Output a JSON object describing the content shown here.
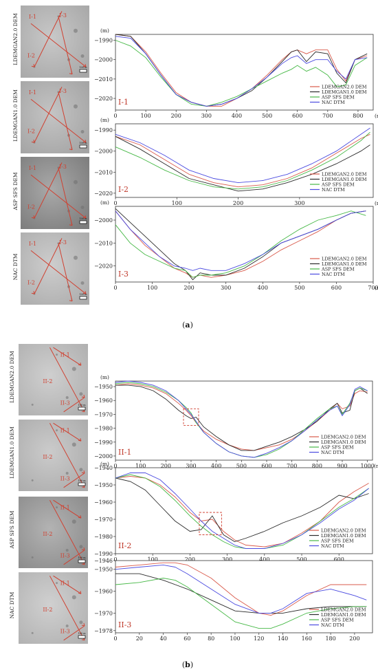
{
  "colors": {
    "LDEMGAN2.0 DEM": "#d9594a",
    "LDEMGAN1.0 DEM": "#2a2a2a",
    "ASP SFS DEM": "#45b845",
    "NAC DTM": "#4a4ae0"
  },
  "legend": [
    "LDEMGAN2.0 DEM",
    "LDEMGAN1.0 DEM",
    "ASP SFS DEM",
    "NAC DTM"
  ],
  "captions": {
    "a": "a",
    "b": "b"
  },
  "panels": [
    {
      "group": "a",
      "side_labels": [
        "LDEMGAN2.0 DEM",
        "LDEMGAN1.0 DEM",
        "ASP SFS DEM",
        "NAC DTM"
      ],
      "image_labels": [
        "I-1",
        "I-2",
        "I-3"
      ],
      "scale_text": "100 m"
    },
    {
      "group": "b",
      "side_labels": [
        "LDEMGAN2.0 DEM",
        "LDEMGAN1.0 DEM",
        "ASP SFS DEM",
        "NAC DTM"
      ],
      "image_labels": [
        "II-1",
        "II-2",
        "II-3"
      ],
      "scale_text": "100 m"
    }
  ],
  "chart_data": [
    {
      "type": "line",
      "label": "I-1",
      "xlabel": "(m)",
      "ylabel": "(m)",
      "xlim": [
        0,
        850
      ],
      "ylim": [
        -2026,
        -1987
      ],
      "xticks": [
        0,
        100,
        200,
        300,
        400,
        500,
        600,
        700,
        800
      ],
      "yticks": [
        -1990,
        -2000,
        -2010,
        -2020
      ],
      "x": [
        0,
        50,
        100,
        150,
        200,
        250,
        300,
        350,
        400,
        450,
        500,
        550,
        580,
        600,
        630,
        660,
        700,
        730,
        760,
        790,
        830
      ],
      "series": [
        {
          "name": "LDEMGAN2.0 DEM",
          "values": [
            -1987,
            -1988,
            -1996,
            -2007,
            -2017,
            -2022,
            -2024,
            -2024,
            -2020,
            -2015,
            -2008,
            -2000,
            -1996,
            -1995,
            -1997,
            -1995,
            -1995,
            -2005,
            -2011,
            -2000,
            -1998
          ]
        },
        {
          "name": "LDEMGAN1.0 DEM",
          "values": [
            -1987,
            -1988,
            -1997,
            -2008,
            -2018,
            -2022,
            -2024,
            -2023,
            -2020,
            -2016,
            -2009,
            -2001,
            -1996,
            -1995,
            -2001,
            -1996,
            -1997,
            -2007,
            -2012,
            -2000,
            -1997
          ]
        },
        {
          "name": "ASP SFS DEM",
          "values": [
            -1990,
            -1993,
            -1999,
            -2009,
            -2018,
            -2023,
            -2024,
            -2022,
            -2019,
            -2015,
            -2011,
            -2007,
            -2005,
            -2003,
            -2006,
            -2004,
            -2008,
            -2014,
            -2013,
            -2003,
            -1999
          ]
        },
        {
          "name": "NAC DTM",
          "values": [
            -1988,
            -1989,
            -1997,
            -2008,
            -2018,
            -2022,
            -2024,
            -2023,
            -2020,
            -2015,
            -2009,
            -2002,
            -1999,
            -1998,
            -2002,
            -2000,
            -2000,
            -2006,
            -2010,
            -2000,
            -1999
          ]
        }
      ]
    },
    {
      "type": "line",
      "label": "I-2",
      "xlabel": "(m)",
      "ylabel": "(m)",
      "xlim": [
        0,
        420
      ],
      "ylim": [
        -2022,
        -1987
      ],
      "xticks": [
        0,
        100,
        200,
        300
      ],
      "yticks": [
        -1990,
        -2000,
        -2010,
        -2020
      ],
      "x": [
        0,
        40,
        80,
        120,
        160,
        200,
        240,
        280,
        320,
        360,
        400,
        415
      ],
      "series": [
        {
          "name": "LDEMGAN2.0 DEM",
          "values": [
            -1993,
            -1997,
            -2004,
            -2011,
            -2015,
            -2017,
            -2016,
            -2013,
            -2008,
            -2001,
            -1994,
            -1992
          ]
        },
        {
          "name": "LDEMGAN1.0 DEM",
          "values": [
            -1993,
            -1999,
            -2006,
            -2013,
            -2016,
            -2019,
            -2018,
            -2015,
            -2011,
            -2006,
            -2000,
            -1997
          ]
        },
        {
          "name": "ASP SFS DEM",
          "values": [
            -1998,
            -2003,
            -2009,
            -2014,
            -2017,
            -2018,
            -2017,
            -2014,
            -2009,
            -2003,
            -1995,
            -1991
          ]
        },
        {
          "name": "NAC DTM",
          "values": [
            -1992,
            -1996,
            -2002,
            -2009,
            -2013,
            -2015,
            -2014,
            -2011,
            -2006,
            -2000,
            -1992,
            -1989
          ]
        }
      ]
    },
    {
      "type": "line",
      "label": "I-3",
      "xlabel": "(m)",
      "ylabel": "(m)",
      "xlim": [
        0,
        700
      ],
      "ylim": [
        -2027,
        -1994
      ],
      "xticks": [
        0,
        100,
        200,
        300,
        400,
        500,
        600,
        700
      ],
      "yticks": [
        -2000,
        -2010,
        -2020
      ],
      "x": [
        0,
        40,
        80,
        120,
        160,
        190,
        210,
        230,
        260,
        300,
        350,
        400,
        450,
        500,
        550,
        600,
        640,
        680
      ],
      "series": [
        {
          "name": "LDEMGAN2.0 DEM",
          "values": [
            -1996,
            -2004,
            -2011,
            -2016,
            -2021,
            -2023,
            -2025,
            -2024,
            -2025,
            -2024,
            -2022,
            -2018,
            -2013,
            -2009,
            -2005,
            -2000,
            -1997,
            -1996
          ]
        },
        {
          "name": "LDEMGAN1.0 DEM",
          "values": [
            -1995,
            -2001,
            -2007,
            -2013,
            -2019,
            -2022,
            -2026,
            -2023,
            -2024,
            -2024,
            -2021,
            -2016,
            -2010,
            -2007,
            -2004,
            -2000,
            -1997,
            -1996
          ]
        },
        {
          "name": "ASP SFS DEM",
          "values": [
            -2002,
            -2010,
            -2015,
            -2018,
            -2021,
            -2022,
            -2025,
            -2024,
            -2024,
            -2023,
            -2020,
            -2015,
            -2009,
            -2004,
            -2000,
            -1998,
            -1996,
            -1998
          ]
        },
        {
          "name": "NAC DTM",
          "values": [
            -1996,
            -2004,
            -2010,
            -2016,
            -2020,
            -2021,
            -2022,
            -2021,
            -2022,
            -2022,
            -2019,
            -2015,
            -2010,
            -2007,
            -2004,
            -2000,
            -1997,
            -1996
          ]
        }
      ]
    },
    {
      "type": "line",
      "label": "II-1",
      "xlabel": "(m)",
      "ylabel": "(m)",
      "xlim": [
        0,
        1020
      ],
      "ylim": [
        -2003,
        -1946
      ],
      "xticks": [
        0,
        100,
        200,
        300,
        400,
        500,
        600,
        700,
        800,
        900,
        1000
      ],
      "yticks": [
        -1950,
        -1960,
        -1970,
        -1980,
        -1990,
        -2000
      ],
      "x": [
        0,
        50,
        100,
        150,
        200,
        250,
        280,
        300,
        320,
        350,
        400,
        450,
        500,
        550,
        600,
        650,
        700,
        750,
        800,
        850,
        880,
        900,
        930,
        950,
        970,
        1000
      ],
      "series": [
        {
          "name": "LDEMGAN2.0 DEM",
          "values": [
            -1949,
            -1948,
            -1949,
            -1951,
            -1955,
            -1962,
            -1967,
            -1971,
            -1976,
            -1982,
            -1988,
            -1992,
            -1995,
            -1996,
            -1994,
            -1992,
            -1988,
            -1982,
            -1975,
            -1967,
            -1962,
            -1966,
            -1964,
            -1955,
            -1953,
            -1954
          ]
        },
        {
          "name": "LDEMGAN1.0 DEM",
          "values": [
            -1949,
            -1949,
            -1950,
            -1953,
            -1959,
            -1967,
            -1971,
            -1973,
            -1972,
            -1979,
            -1986,
            -1992,
            -1996,
            -1996,
            -1993,
            -1990,
            -1986,
            -1981,
            -1975,
            -1966,
            -1962,
            -1969,
            -1967,
            -1953,
            -1951,
            -1955
          ]
        },
        {
          "name": "ASP SFS DEM",
          "values": [
            -1948,
            -1947,
            -1948,
            -1950,
            -1954,
            -1960,
            -1965,
            -1969,
            -1976,
            -1983,
            -1991,
            -1997,
            -2000,
            -2001,
            -1999,
            -1995,
            -1989,
            -1981,
            -1973,
            -1966,
            -1964,
            -1970,
            -1962,
            -1953,
            -1951,
            -1953
          ]
        },
        {
          "name": "NAC DTM",
          "values": [
            -1947,
            -1946,
            -1947,
            -1949,
            -1953,
            -1960,
            -1966,
            -1970,
            -1975,
            -1983,
            -1991,
            -1997,
            -2000,
            -2001,
            -1998,
            -1994,
            -1989,
            -1982,
            -1974,
            -1967,
            -1964,
            -1971,
            -1963,
            -1952,
            -1950,
            -1953
          ]
        }
      ]
    },
    {
      "type": "line",
      "label": "II-2",
      "xlabel": "",
      "ylabel": "(m)",
      "xlim": [
        0,
        690
      ],
      "ylim": [
        -1990,
        -1940
      ],
      "xticks": [
        0,
        100,
        200,
        300,
        400,
        500,
        600
      ],
      "yticks": [
        -1940,
        -1950,
        -1960,
        -1970,
        -1980,
        -1990
      ],
      "x": [
        0,
        40,
        80,
        120,
        160,
        200,
        230,
        260,
        290,
        320,
        350,
        400,
        450,
        500,
        550,
        600,
        640,
        680
      ],
      "series": [
        {
          "name": "LDEMGAN2.0 DEM",
          "values": [
            -1946,
            -1945,
            -1946,
            -1950,
            -1957,
            -1966,
            -1971,
            -1970,
            -1977,
            -1982,
            -1985,
            -1986,
            -1984,
            -1978,
            -1971,
            -1960,
            -1954,
            -1949
          ]
        },
        {
          "name": "LDEMGAN1.0 DEM",
          "values": [
            -1946,
            -1948,
            -1953,
            -1962,
            -1971,
            -1977,
            -1976,
            -1968,
            -1979,
            -1983,
            -1981,
            -1977,
            -1972,
            -1968,
            -1963,
            -1956,
            -1958,
            -1955
          ]
        },
        {
          "name": "ASP SFS DEM",
          "values": [
            -1946,
            -1944,
            -1946,
            -1951,
            -1959,
            -1968,
            -1974,
            -1979,
            -1983,
            -1986,
            -1987,
            -1987,
            -1985,
            -1979,
            -1971,
            -1963,
            -1958,
            -1952
          ]
        },
        {
          "name": "NAC DTM",
          "values": [
            -1946,
            -1943,
            -1943,
            -1947,
            -1955,
            -1964,
            -1971,
            -1977,
            -1981,
            -1985,
            -1987,
            -1987,
            -1984,
            -1979,
            -1972,
            -1964,
            -1959,
            -1952
          ]
        }
      ]
    },
    {
      "type": "line",
      "label": "II-3",
      "xlabel": "",
      "ylabel": "",
      "xlim": [
        0,
        215
      ],
      "ylim": [
        -1979,
        -1946
      ],
      "xticks": [
        0,
        20,
        40,
        60,
        80,
        100,
        120,
        140,
        160,
        180,
        200
      ],
      "yticks": [
        -1946,
        -1950,
        -1960,
        -1970,
        -1978
      ],
      "x": [
        0,
        20,
        40,
        50,
        60,
        80,
        100,
        120,
        130,
        140,
        160,
        180,
        200,
        210
      ],
      "series": [
        {
          "name": "LDEMGAN2.0 DEM",
          "values": [
            -1949,
            -1948,
            -1947,
            -1947,
            -1948,
            -1954,
            -1963,
            -1970,
            -1971,
            -1969,
            -1962,
            -1957,
            -1957,
            -1957
          ]
        },
        {
          "name": "LDEMGAN1.0 DEM",
          "values": [
            -1952,
            -1952,
            -1955,
            -1957,
            -1959,
            -1964,
            -1969,
            -1970,
            -1970,
            -1970,
            -1968,
            -1967,
            -1967,
            -1967
          ]
        },
        {
          "name": "ASP SFS DEM",
          "values": [
            -1957,
            -1956,
            -1954,
            -1955,
            -1958,
            -1966,
            -1974,
            -1977,
            -1977,
            -1975,
            -1970,
            -1968,
            -1967,
            -1967
          ]
        },
        {
          "name": "NAC DTM",
          "values": [
            -1950,
            -1949,
            -1948,
            -1949,
            -1952,
            -1959,
            -1966,
            -1970,
            -1970,
            -1968,
            -1961,
            -1959,
            -1962,
            -1964
          ]
        }
      ]
    }
  ]
}
